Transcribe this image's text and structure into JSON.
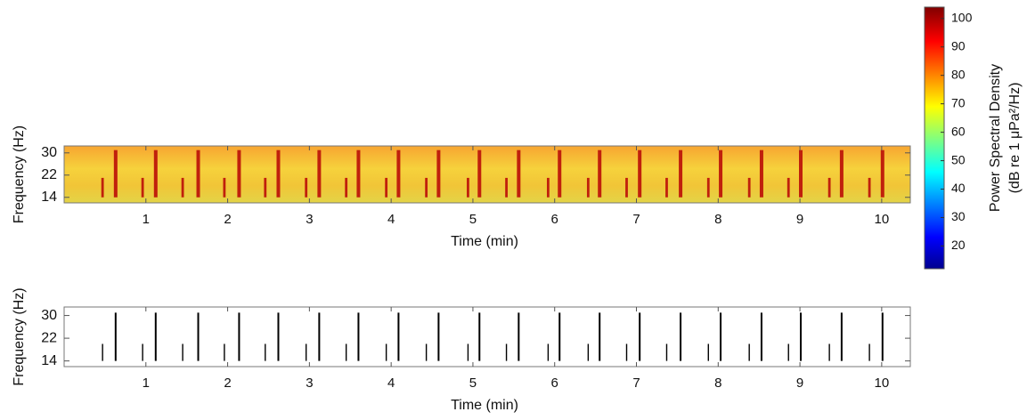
{
  "chart_data": [
    {
      "type": "spectrogram",
      "xlabel": "Time (min)",
      "ylabel": "Frequency (Hz)",
      "xlim": [
        0,
        10.35
      ],
      "xticks": [
        1,
        2,
        3,
        4,
        5,
        6,
        7,
        8,
        9,
        10
      ],
      "ylim": [
        12,
        32.5
      ],
      "yticks": [
        14,
        22,
        30
      ],
      "color": "#c0200c",
      "events": {
        "x": [
          0.47,
          0.63,
          0.96,
          1.12,
          1.45,
          1.64,
          1.96,
          2.14,
          2.46,
          2.62,
          2.96,
          3.12,
          3.45,
          3.6,
          3.94,
          4.09,
          4.43,
          4.58,
          4.94,
          5.08,
          5.41,
          5.56,
          5.92,
          6.06,
          6.41,
          6.55,
          6.88,
          7.04,
          7.37,
          7.54,
          7.88,
          8.03,
          8.38,
          8.53,
          8.86,
          9.01,
          9.36,
          9.51,
          9.85,
          10.01
        ],
        "fmin": [
          14,
          14,
          14,
          14,
          14,
          14,
          14,
          14,
          14,
          14,
          14,
          14,
          14,
          14,
          14,
          14,
          14,
          14,
          14,
          14,
          14,
          14,
          14,
          14,
          14,
          14,
          14,
          14,
          14,
          14,
          14,
          14,
          14,
          14,
          14,
          14,
          14,
          14,
          14,
          14
        ],
        "fmax": [
          21,
          31,
          21,
          31,
          21,
          31,
          21,
          31,
          21,
          31,
          21,
          31,
          21,
          31,
          21,
          31,
          21,
          31,
          21,
          31,
          21,
          31,
          21,
          31,
          21,
          31,
          21,
          31,
          21,
          31,
          21,
          31,
          21,
          31,
          21,
          31,
          21,
          31,
          21,
          31
        ]
      },
      "colorbar": {
        "label": [
          "Power Spectral Density",
          "(dB re 1 μPa²/Hz)"
        ],
        "lim": [
          12,
          104
        ],
        "ticks": [
          20,
          30,
          40,
          50,
          60,
          70,
          80,
          90,
          100
        ]
      }
    },
    {
      "type": "detection",
      "xlabel": "Time (min)",
      "ylabel": "Frequency (Hz)",
      "xlim": [
        0,
        10.35
      ],
      "xticks": [
        1,
        2,
        3,
        4,
        5,
        6,
        7,
        8,
        9,
        10
      ],
      "ylim": [
        12,
        33
      ],
      "yticks": [
        14,
        22,
        30
      ],
      "color": "#000000",
      "events": {
        "x": [
          0.47,
          0.63,
          0.96,
          1.12,
          1.45,
          1.64,
          1.96,
          2.14,
          2.46,
          2.62,
          2.96,
          3.12,
          3.45,
          3.6,
          3.94,
          4.09,
          4.43,
          4.58,
          4.94,
          5.08,
          5.41,
          5.56,
          5.92,
          6.06,
          6.41,
          6.55,
          6.88,
          7.04,
          7.37,
          7.54,
          7.88,
          8.03,
          8.38,
          8.53,
          8.86,
          9.01,
          9.36,
          9.51,
          9.85,
          10.01
        ],
        "fmin": [
          14,
          14,
          14,
          14,
          14,
          14,
          14,
          14,
          14,
          14,
          14,
          14,
          14,
          14,
          14,
          14,
          14,
          14,
          14,
          14,
          14,
          14,
          14,
          14,
          14,
          14,
          14,
          14,
          14,
          14,
          14,
          14,
          14,
          14,
          14,
          14,
          14,
          14,
          14,
          14
        ],
        "fmax": [
          20,
          31,
          20,
          31,
          20,
          31,
          20,
          31,
          20,
          31,
          20,
          31,
          20,
          31,
          20,
          31,
          20,
          31,
          20,
          31,
          20,
          31,
          20,
          31,
          20,
          31,
          20,
          31,
          20,
          31,
          20,
          31,
          20,
          31,
          20,
          31,
          20,
          31,
          20,
          31
        ]
      }
    }
  ]
}
